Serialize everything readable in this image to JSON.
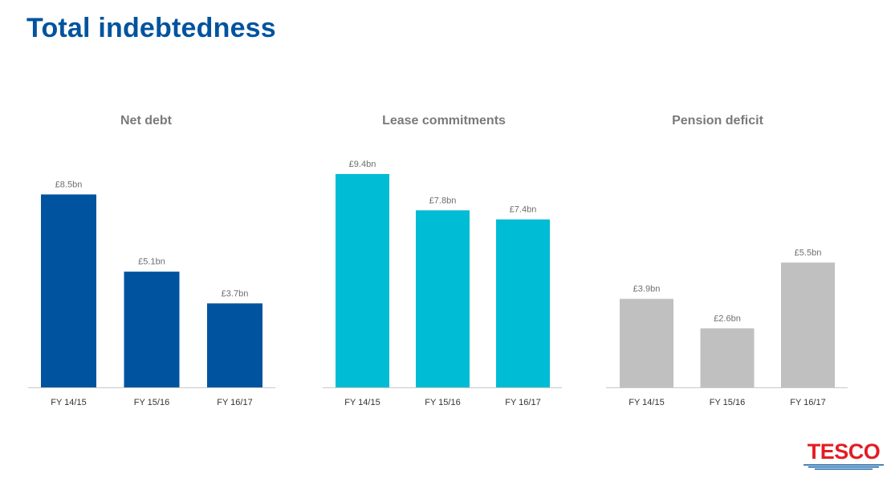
{
  "page": {
    "title": "Total indebtedness",
    "logo_text": "TESCO",
    "title_color": "#00539f"
  },
  "chart_data": [
    {
      "type": "bar",
      "title": "Net debt",
      "categories": [
        "FY 14/15",
        "FY 15/16",
        "FY 16/17"
      ],
      "values": [
        8.5,
        5.1,
        3.7
      ],
      "data_labels": [
        "£8.5bn",
        "£5.1bn",
        "£3.7bn"
      ],
      "unit": "£bn",
      "ylim": [
        0,
        10
      ],
      "color": "#00539f",
      "grid": false,
      "legend": "none"
    },
    {
      "type": "bar",
      "title": "Lease commitments",
      "categories": [
        "FY 14/15",
        "FY 15/16",
        "FY 16/17"
      ],
      "values": [
        9.4,
        7.8,
        7.4
      ],
      "data_labels": [
        "£9.4bn",
        "£7.8bn",
        "£7.4bn"
      ],
      "unit": "£bn",
      "ylim": [
        0,
        10
      ],
      "color": "#00bcd4",
      "grid": false,
      "legend": "none"
    },
    {
      "type": "bar",
      "title": "Pension deficit",
      "categories": [
        "FY 14/15",
        "FY 15/16",
        "FY 16/17"
      ],
      "values": [
        3.9,
        2.6,
        5.5
      ],
      "data_labels": [
        "£3.9bn",
        "£2.6bn",
        "£5.5bn"
      ],
      "unit": "£bn",
      "ylim": [
        0,
        10
      ],
      "color": "#c0c0c0",
      "grid": false,
      "legend": "none"
    }
  ]
}
